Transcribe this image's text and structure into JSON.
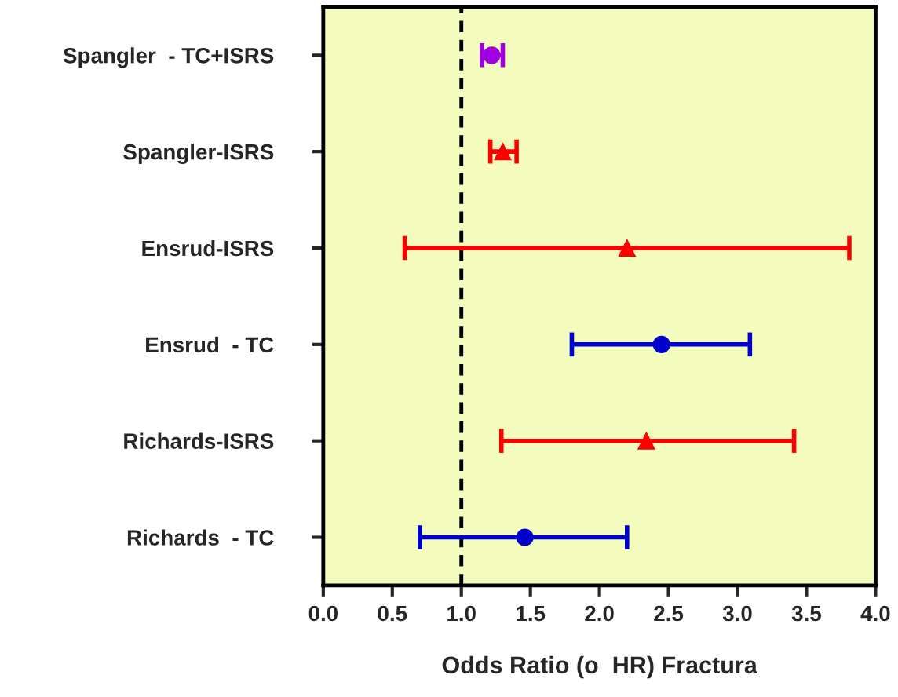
{
  "chart_data": {
    "type": "scatter",
    "orientation": "horizontal",
    "xlabel": "Odds Ratio (o  HR) Fractura",
    "categories": [
      "Spangler  - TC+ISRS",
      "Spangler-ISRS",
      "Ensrud-ISRS",
      "Ensrud  - TC",
      "Richards-ISRS",
      "Richards  - TC"
    ],
    "series": [
      {
        "color": "#a000e0",
        "marker": "circle",
        "values": [
          1.22,
          null,
          null,
          null,
          null,
          null
        ],
        "errors": [
          [
            1.15,
            1.3
          ],
          null,
          null,
          null,
          null,
          null
        ]
      },
      {
        "color": "#ff0000",
        "marker": "triangle",
        "values": [
          null,
          1.3,
          2.2,
          null,
          2.34,
          null
        ],
        "errors": [
          null,
          [
            1.21,
            1.4
          ],
          [
            0.59,
            3.81
          ],
          null,
          [
            1.29,
            3.41
          ],
          null
        ]
      },
      {
        "color": "#0000cc",
        "marker": "circle",
        "values": [
          null,
          null,
          null,
          2.45,
          null,
          1.46
        ],
        "errors": [
          null,
          null,
          null,
          [
            1.8,
            3.09
          ],
          null,
          [
            0.7,
            2.2
          ]
        ]
      }
    ],
    "xlim": [
      0,
      4
    ],
    "xticks": [
      {
        "value": 0,
        "label": "0.0"
      },
      {
        "value": 0.5,
        "label": "0.5"
      },
      {
        "value": 1,
        "label": "1.0"
      },
      {
        "value": 1.5,
        "label": "1.5"
      },
      {
        "value": 2,
        "label": "2.0"
      },
      {
        "value": 2.5,
        "label": "2.5"
      },
      {
        "value": 3,
        "label": "3.0"
      },
      {
        "value": 3.5,
        "label": "3.5"
      },
      {
        "value": 4,
        "label": "4.0"
      }
    ],
    "ref_lines": [
      {
        "axis": "x",
        "value": 1.0,
        "color": "#000000",
        "line_style": "dashed"
      }
    ],
    "grid": false,
    "legend": false
  }
}
